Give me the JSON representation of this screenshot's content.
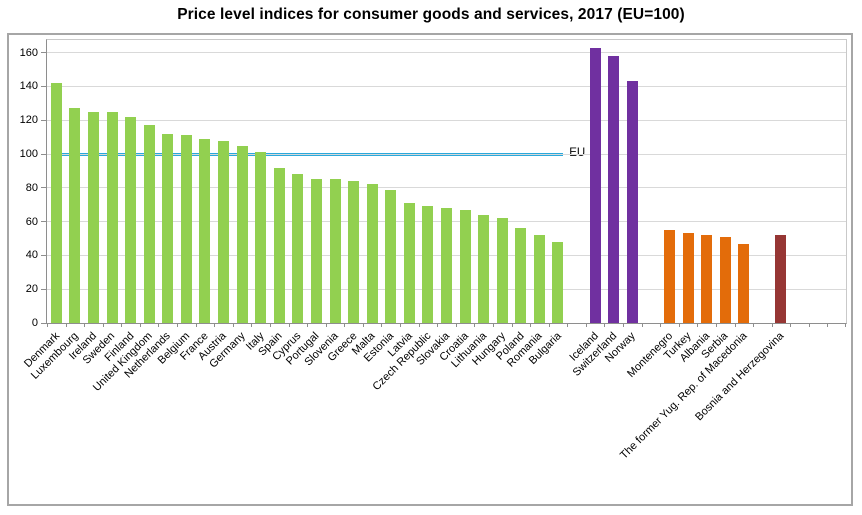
{
  "chart_data": {
    "type": "bar",
    "title": "Price level indices for consumer goods and services, 2017 (EU=100)",
    "xlabel": "",
    "ylabel": "",
    "yticks": [
      0,
      20,
      40,
      60,
      80,
      100,
      120,
      140,
      160
    ],
    "ylim": [
      0,
      160
    ],
    "grid": true,
    "legend": "none",
    "reference_line": {
      "label": "EU",
      "value": 100,
      "color": "#29a9dc"
    },
    "groups": [
      {
        "color": "#92d050",
        "categories": [
          "Denmark",
          "Luxembourg",
          "Ireland",
          "Sweden",
          "Finland",
          "United Kingdom",
          "Netherlands",
          "Belgium",
          "France",
          "Austria",
          "Germany",
          "Italy",
          "Spain",
          "Cyprus",
          "Portugal",
          "Slovenia",
          "Greece",
          "Malta",
          "Estonia",
          "Latvia",
          "Czech Republic",
          "Slovakia",
          "Croatia",
          "Lithuania",
          "Hungary",
          "Poland",
          "Romania",
          "Bulgaria"
        ],
        "values": [
          142,
          127,
          125,
          125,
          122,
          117,
          112,
          111,
          109,
          108,
          105,
          101,
          92,
          88,
          85,
          85,
          84,
          82,
          79,
          71,
          69,
          68,
          67,
          64,
          62,
          56,
          52,
          48
        ]
      },
      {
        "color": "#7030a0",
        "categories": [
          "Iceland",
          "Switzerland",
          "Norway"
        ],
        "values": [
          163,
          158,
          143
        ]
      },
      {
        "color": "#e36c0a",
        "categories": [
          "Montenegro",
          "Turkey",
          "Albania",
          "Serbia",
          "The former Yug. Rep. of Macedonia"
        ],
        "values": [
          55,
          53,
          52,
          51,
          47
        ]
      },
      {
        "color": "#963634",
        "categories": [
          "Bosnia and Herzegovina"
        ],
        "values": [
          52
        ]
      }
    ]
  }
}
